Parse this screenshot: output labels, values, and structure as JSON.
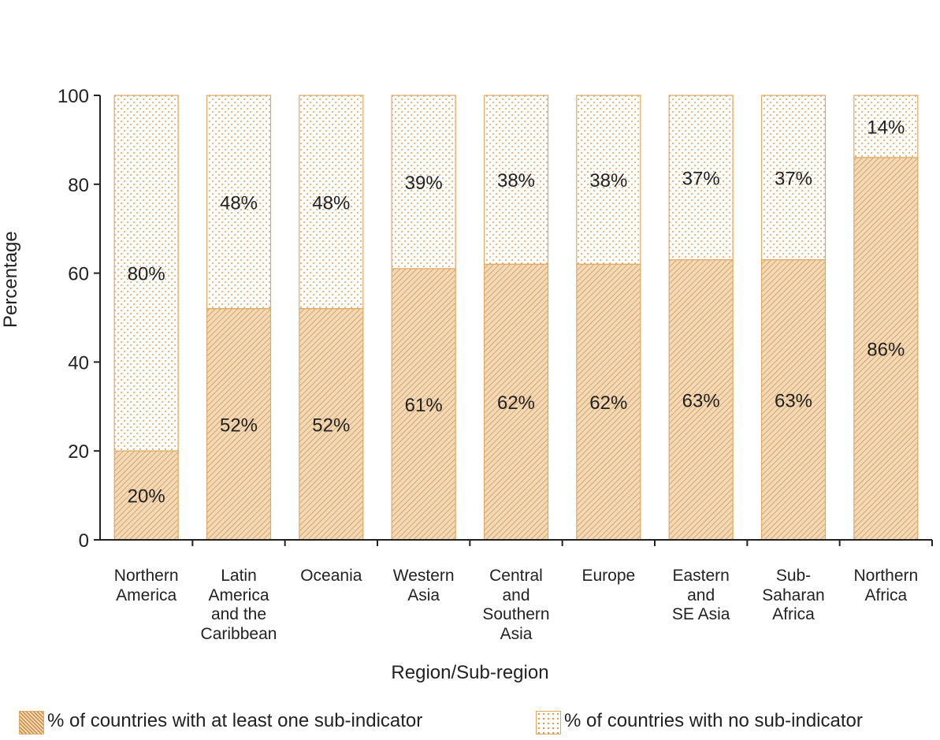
{
  "chart_data": {
    "type": "bar",
    "stacked": true,
    "categories": [
      "Northern\nAmerica",
      "Latin\nAmerica\nand the\nCaribbean",
      "Oceania",
      "Western\nAsia",
      "Central\nand\nSouthern\nAsia",
      "Europe",
      "Eastern\nand\nSE Asia",
      "Sub-\nSaharan\nAfrica",
      "Northern\nAfrica"
    ],
    "series": [
      {
        "name": "% of countries with at least one sub-indicator",
        "values": [
          20,
          52,
          52,
          61,
          62,
          62,
          63,
          63,
          86
        ],
        "labels": [
          "20%",
          "52%",
          "52%",
          "61%",
          "62%",
          "62%",
          "63%",
          "63%",
          "86%"
        ]
      },
      {
        "name": "% of countries with no sub-indicator",
        "values": [
          80,
          48,
          48,
          39,
          38,
          38,
          37,
          37,
          14
        ],
        "labels": [
          "80%",
          "48%",
          "48%",
          "39%",
          "38%",
          "38%",
          "37%",
          "37%",
          "14%"
        ]
      }
    ],
    "xlabel": "Region/Sub-region",
    "ylabel": "Percentage",
    "ylim": [
      0,
      100
    ],
    "yticks": [
      "0",
      "20",
      "40",
      "60",
      "80",
      "100"
    ],
    "grid": false,
    "legend": "bottom",
    "colors": {
      "bar_fill": "#f3d9b6",
      "bar_edge": "#e0a860",
      "pattern": "#c98a45",
      "text": "#222222"
    }
  }
}
